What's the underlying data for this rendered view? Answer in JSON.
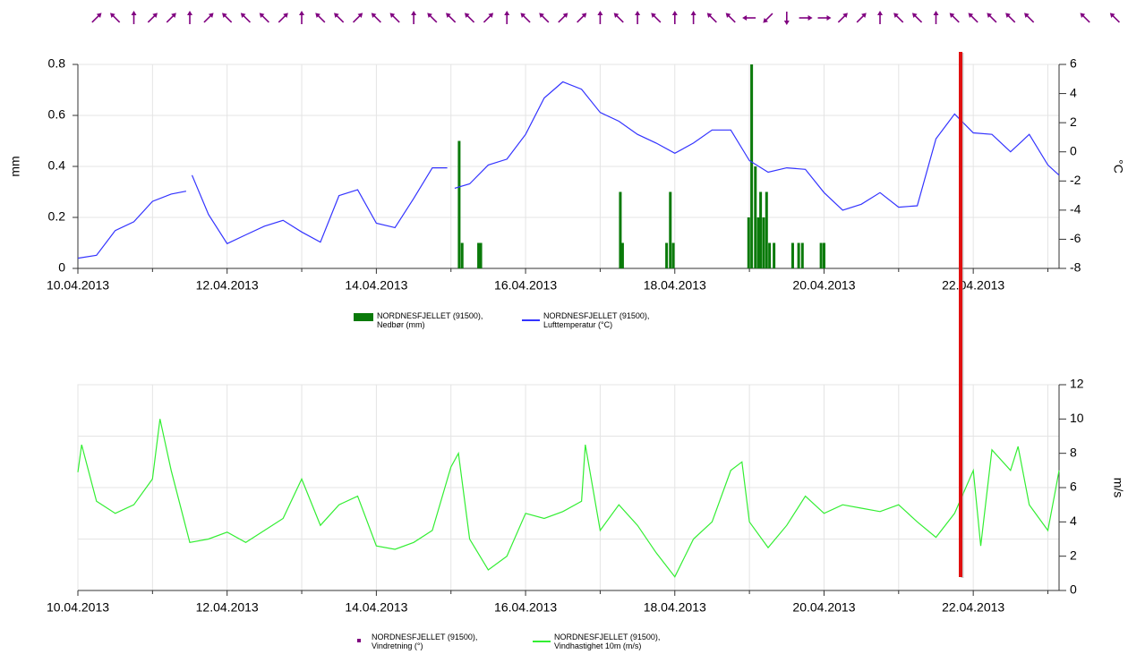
{
  "chart_data": [
    {
      "type": "combo",
      "xlim": [
        10,
        23.15
      ],
      "xticks": [
        {
          "value": 10,
          "label": "10.04.2013"
        },
        {
          "value": 12,
          "label": "12.04.2013"
        },
        {
          "value": 14,
          "label": "14.04.2013"
        },
        {
          "value": 16,
          "label": "16.04.2013"
        },
        {
          "value": 18,
          "label": "18.04.2013"
        },
        {
          "value": 20,
          "label": "20.04.2013"
        },
        {
          "value": 22,
          "label": "22.04.2013"
        }
      ],
      "xminorticks": [
        11,
        13,
        15,
        17,
        19,
        21,
        23
      ],
      "ylabel": "mm",
      "ylim": [
        0,
        0.8
      ],
      "yticks": [
        0,
        0.2,
        0.4,
        0.6,
        0.8
      ],
      "y2label": "°C",
      "y2lim": [
        -8,
        6
      ],
      "y2ticks": [
        -8,
        -6,
        -4,
        -2,
        0,
        2,
        4,
        6
      ],
      "grid": true,
      "series": [
        {
          "name": "NORDNESFJELLET (91500), Nedbør (mm)",
          "type": "bar",
          "color": "#0a7a0a",
          "x": [
            15.11,
            15.15,
            15.37,
            15.4,
            17.27,
            17.3,
            17.89,
            17.94,
            17.98,
            18.99,
            19.03,
            19.08,
            19.12,
            19.15,
            19.19,
            19.23,
            19.27,
            19.33,
            19.58,
            19.66,
            19.71,
            19.96,
            20.0
          ],
          "values": [
            0.5,
            0.1,
            0.1,
            0.1,
            0.3,
            0.1,
            0.1,
            0.3,
            0.1,
            0.2,
            0.8,
            0.4,
            0.2,
            0.3,
            0.2,
            0.3,
            0.1,
            0.1,
            0.1,
            0.1,
            0.1,
            0.1,
            0.1
          ]
        },
        {
          "name": "NORDNESFJELLET (91500), Lufttemperatur (°C)",
          "type": "line",
          "axis": "y2",
          "color": "#3333ff",
          "x": [
            10,
            10.25,
            10.5,
            10.75,
            11,
            11.25,
            11.45,
            11.5,
            11.53,
            11.75,
            12,
            12.25,
            12.5,
            12.75,
            13,
            13.25,
            13.5,
            13.75,
            14,
            14.25,
            14.5,
            14.75,
            14.95,
            15,
            15.05,
            15.25,
            15.5,
            15.75,
            16,
            16.25,
            16.5,
            16.75,
            17,
            17.25,
            17.5,
            17.75,
            18,
            18.25,
            18.5,
            18.75,
            19,
            19.25,
            19.5,
            19.75,
            20,
            20.25,
            20.5,
            20.75,
            21,
            21.25,
            21.5,
            21.75,
            22,
            22.25,
            22.5,
            22.75,
            23,
            23.15
          ],
          "values": [
            -7.3,
            -7.1,
            -5.4,
            -4.8,
            -3.4,
            -2.9,
            -2.7,
            null,
            -1.6,
            -4.3,
            -6.3,
            -5.7,
            -5.1,
            -4.7,
            -5.5,
            -6.2,
            -3.0,
            -2.6,
            -4.9,
            -5.2,
            -3.2,
            -1.1,
            -1.1,
            null,
            -2.5,
            -2.2,
            -0.9,
            -0.5,
            1.2,
            3.7,
            4.8,
            4.3,
            2.7,
            2.1,
            1.2,
            0.6,
            -0.1,
            0.6,
            1.5,
            1.5,
            -0.6,
            -1.4,
            -1.1,
            -1.2,
            -2.8,
            -4.0,
            -3.6,
            -2.8,
            -3.8,
            -3.7,
            0.9,
            2.6,
            1.3,
            1.2,
            0.0,
            1.2,
            -0.9,
            -1.6
          ]
        }
      ]
    },
    {
      "type": "line",
      "xlim": [
        10,
        23.15
      ],
      "xticks": [
        {
          "value": 10,
          "label": "10.04.2013"
        },
        {
          "value": 12,
          "label": "12.04.2013"
        },
        {
          "value": 14,
          "label": "14.04.2013"
        },
        {
          "value": 16,
          "label": "16.04.2013"
        },
        {
          "value": 18,
          "label": "18.04.2013"
        },
        {
          "value": 20,
          "label": "20.04.2013"
        },
        {
          "value": 22,
          "label": "22.04.2013"
        }
      ],
      "xminorticks": [
        11,
        13,
        15,
        17,
        19,
        21,
        23
      ],
      "y2label": "m/s",
      "y2lim": [
        0,
        12
      ],
      "y2ticks": [
        0,
        2,
        4,
        6,
        8,
        10,
        12
      ],
      "ygrid": [
        3,
        6,
        9,
        12
      ],
      "grid": true,
      "series": [
        {
          "name": "NORDNESFJELLET (91500), Vindretning (°)",
          "type": "arrow",
          "color": "#800080",
          "x": [
            10.25,
            10.5,
            10.75,
            11,
            11.25,
            11.5,
            11.75,
            12,
            12.25,
            12.5,
            12.75,
            13,
            13.25,
            13.5,
            13.75,
            14,
            14.25,
            14.5,
            14.75,
            15,
            15.25,
            15.5,
            15.75,
            16,
            16.25,
            16.5,
            16.75,
            17,
            17.25,
            17.5,
            17.75,
            18,
            18.25,
            18.5,
            18.75,
            19,
            19.25,
            19.5,
            19.75,
            20,
            20.25,
            20.5,
            20.75,
            21,
            21.25,
            21.5,
            21.75,
            22,
            22.25,
            22.5,
            22.75,
            23.5,
            23.9
          ],
          "values": [
            225,
            135,
            180,
            225,
            225,
            180,
            225,
            135,
            135,
            135,
            225,
            180,
            135,
            135,
            225,
            135,
            135,
            180,
            135,
            135,
            135,
            225,
            180,
            135,
            135,
            225,
            225,
            180,
            135,
            180,
            135,
            180,
            180,
            135,
            135,
            90,
            45,
            360,
            270,
            270,
            225,
            225,
            180,
            135,
            135,
            180,
            135,
            135,
            135,
            135,
            135,
            135,
            135
          ]
        },
        {
          "name": "NORDNESFJELLET (91500), Vindhastighet 10m (m/s)",
          "type": "line",
          "axis": "y2",
          "color": "#33ee33",
          "x": [
            10,
            10.05,
            10.25,
            10.5,
            10.75,
            11,
            11.1,
            11.25,
            11.5,
            11.75,
            12,
            12.25,
            12.5,
            12.75,
            13,
            13.25,
            13.5,
            13.75,
            14,
            14.25,
            14.5,
            14.75,
            15,
            15.1,
            15.25,
            15.5,
            15.75,
            16,
            16.25,
            16.5,
            16.75,
            16.8,
            17,
            17.25,
            17.5,
            17.75,
            18,
            18.25,
            18.5,
            18.75,
            18.9,
            19,
            19.25,
            19.5,
            19.75,
            20,
            20.25,
            20.5,
            20.75,
            21,
            21.25,
            21.5,
            21.75,
            22,
            22.1,
            22.25,
            22.5,
            22.6,
            22.75,
            23,
            23.1,
            23.15
          ],
          "values": [
            6.9,
            8.5,
            5.2,
            4.5,
            5.0,
            6.5,
            10.0,
            7.0,
            2.8,
            3.0,
            3.4,
            2.8,
            3.5,
            4.2,
            6.5,
            3.8,
            5.0,
            5.5,
            2.6,
            2.4,
            2.8,
            3.5,
            7.2,
            8.0,
            3.0,
            1.2,
            2.0,
            4.5,
            4.2,
            4.6,
            5.2,
            8.5,
            3.5,
            5.0,
            3.8,
            2.2,
            0.8,
            3.0,
            4.0,
            7.0,
            7.5,
            4.0,
            2.5,
            3.8,
            5.5,
            4.5,
            5.0,
            4.8,
            4.6,
            5.0,
            4.0,
            3.1,
            4.5,
            7.0,
            2.6,
            8.2,
            7.0,
            8.4,
            5.0,
            3.5,
            5.8,
            7.0
          ]
        }
      ]
    }
  ]
}
